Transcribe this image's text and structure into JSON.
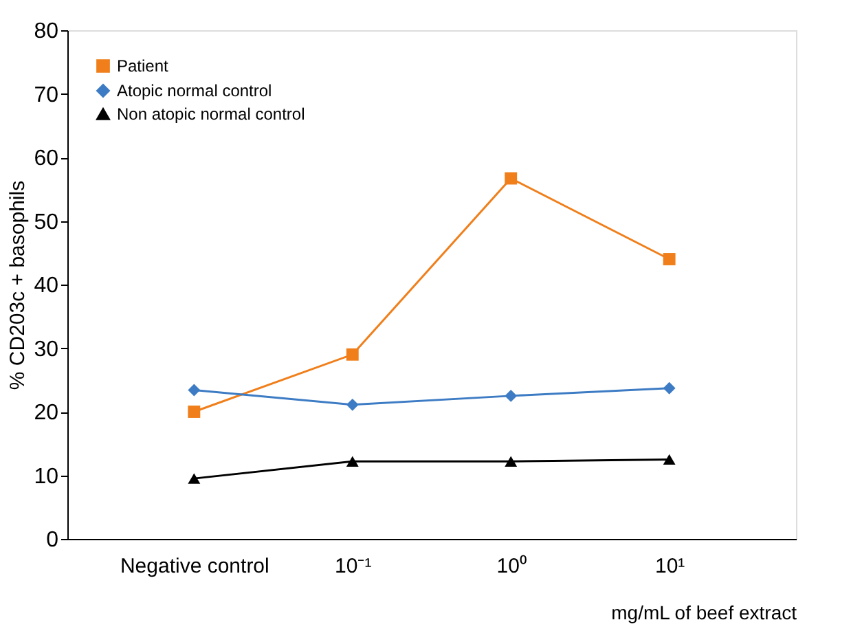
{
  "chart_data": {
    "type": "line",
    "categories": [
      "Negative control",
      "10⁻¹",
      "10⁰",
      "10¹"
    ],
    "xlabel": "mg/mL of beef extract",
    "ylabel": "% CD203c + basophils",
    "ylim": [
      0,
      80
    ],
    "yticks": [
      0,
      10,
      20,
      30,
      40,
      50,
      60,
      70,
      80
    ],
    "grid": false,
    "legend": "top left",
    "series": [
      {
        "name": "Patient",
        "color": "#f07f1b",
        "marker": "square",
        "values": [
          20,
          29,
          56.7,
          44
        ]
      },
      {
        "name": "Atopic normal control",
        "color": "#3d7cc4",
        "marker": "diamond",
        "values": [
          23.4,
          21.1,
          22.5,
          23.7
        ]
      },
      {
        "name": "Non atopic normal control",
        "color": "#000000",
        "marker": "triangle",
        "values": [
          9.5,
          12.2,
          12.2,
          12.5
        ]
      }
    ]
  }
}
